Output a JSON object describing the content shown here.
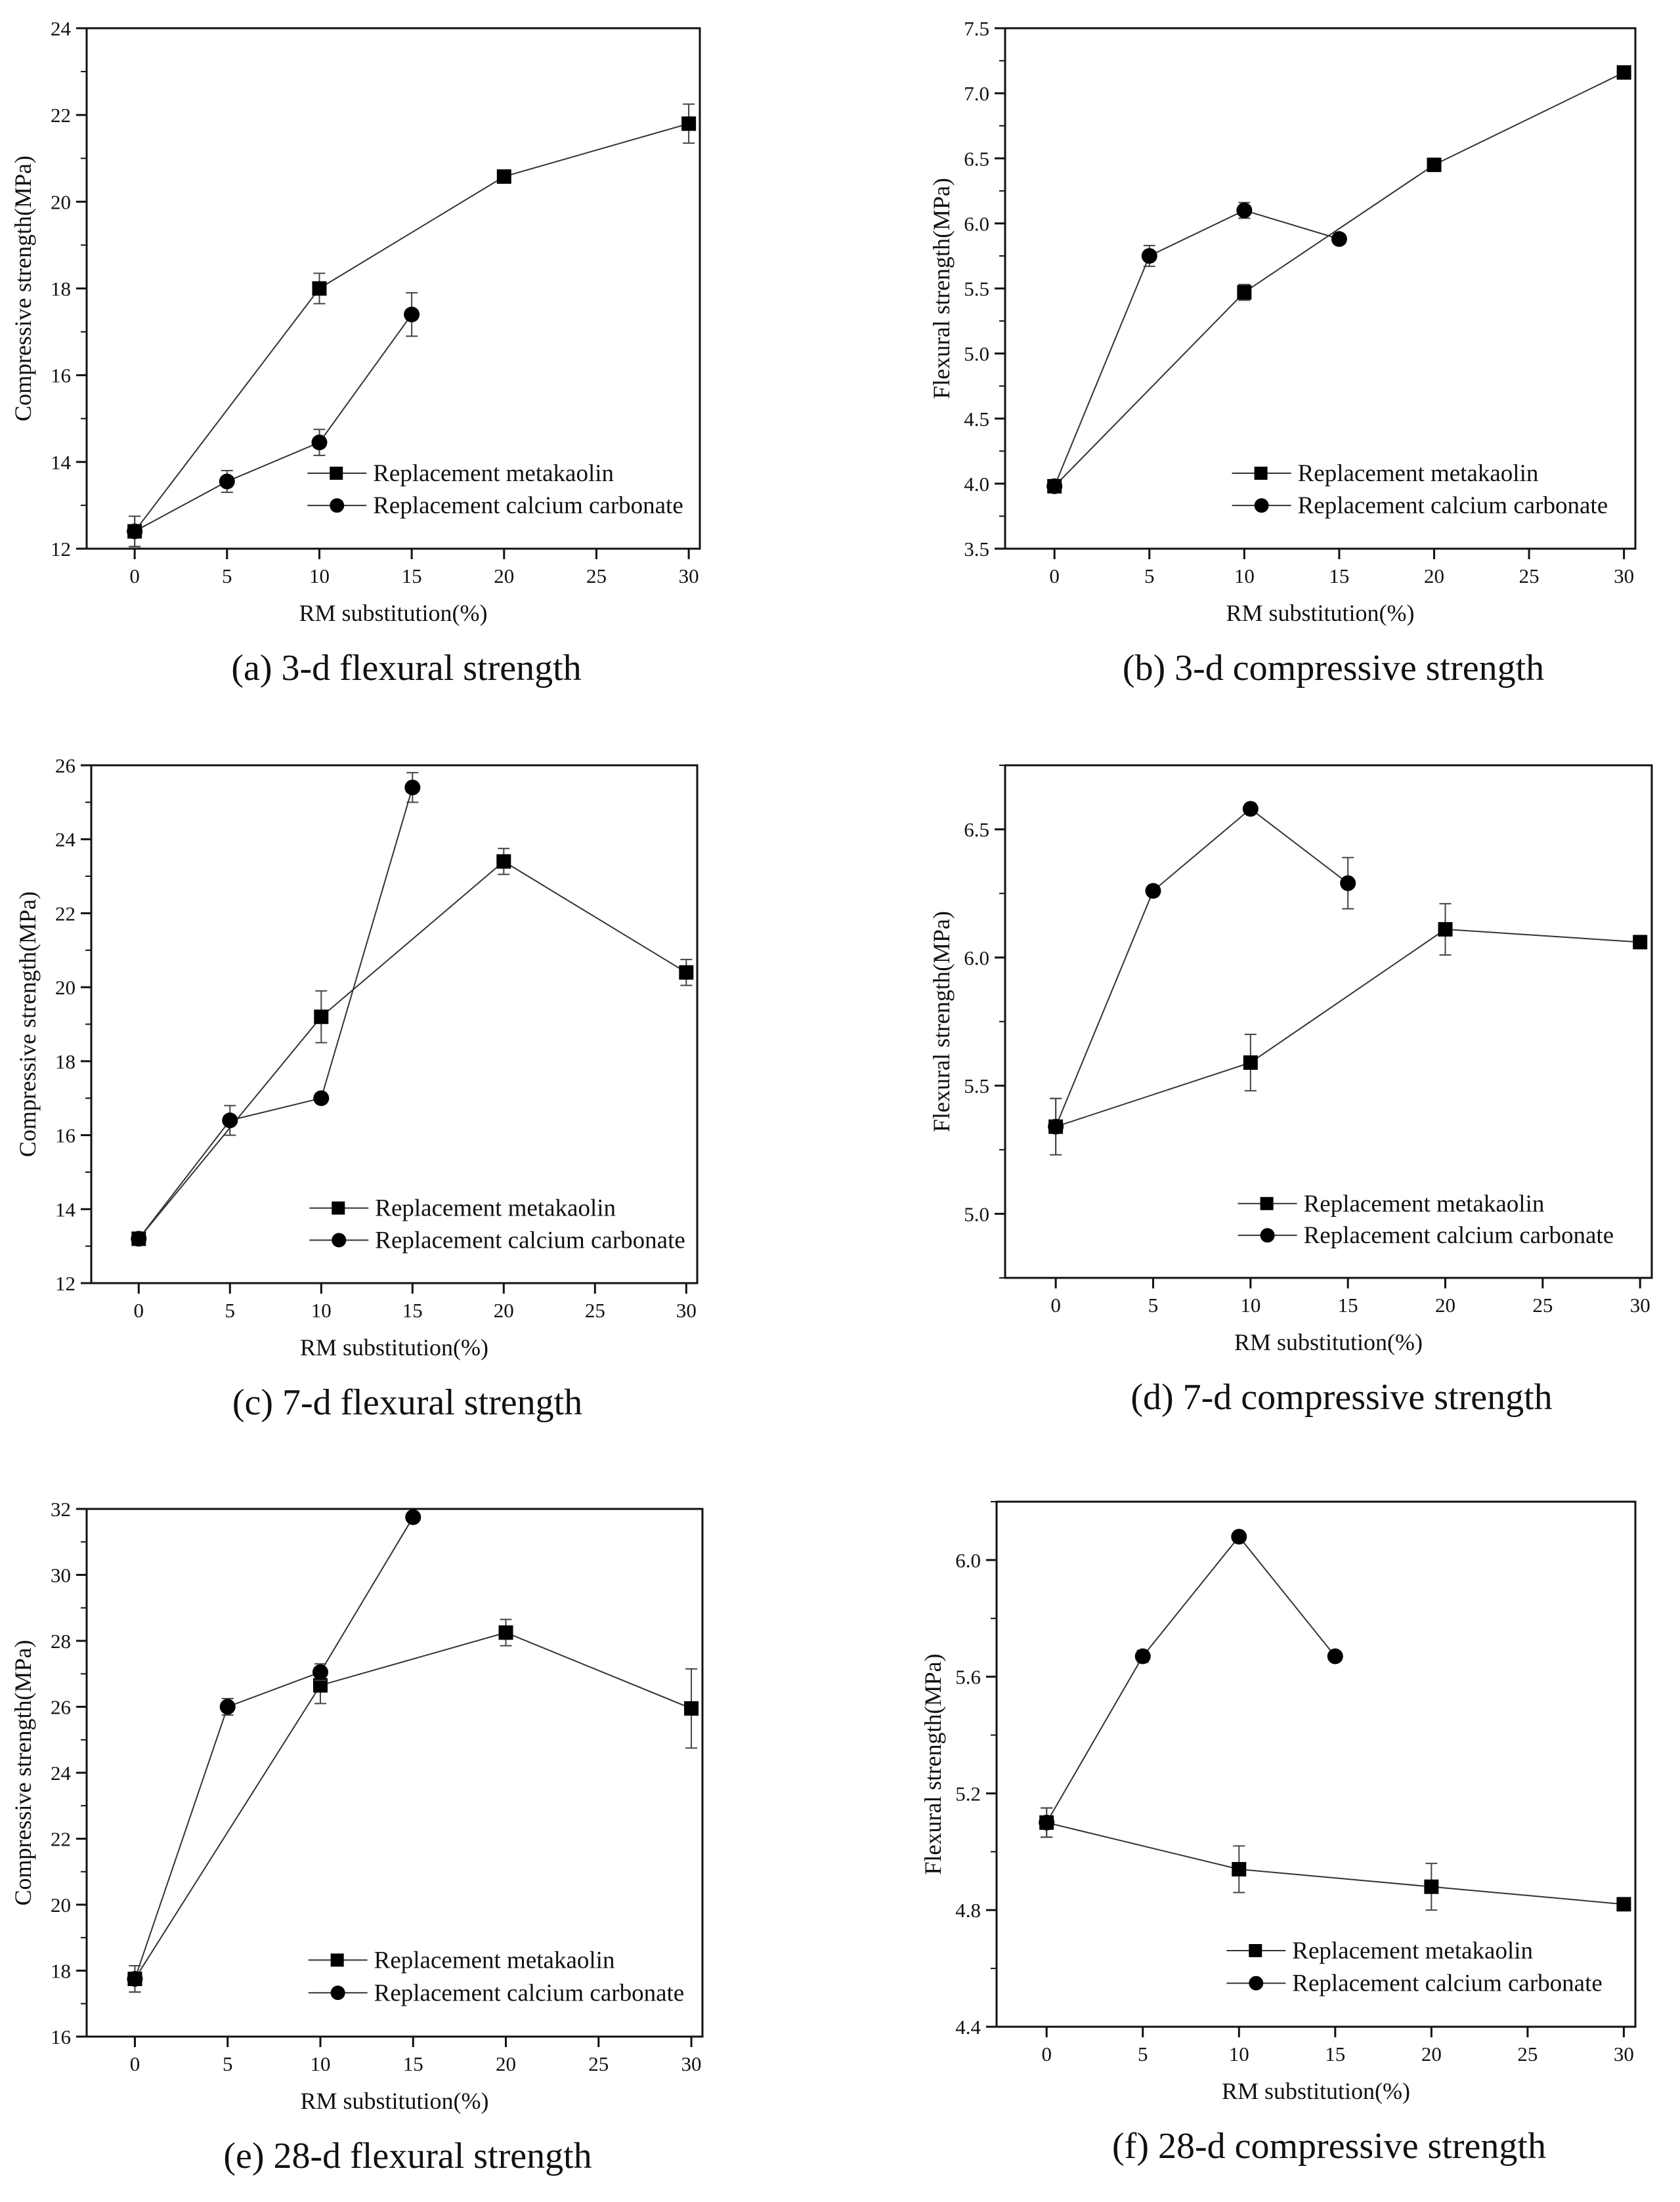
{
  "chart_data": [
    {
      "type": "line",
      "caption": "(a) 3-d flexural strength",
      "xlabel": "RM substitution(%)",
      "ylabel": "Compressive strength(MPa)",
      "xlim": [
        -2.6,
        30.6
      ],
      "ylim": [
        12,
        24
      ],
      "xticks": [
        0,
        5,
        10,
        15,
        20,
        25,
        30
      ],
      "yticks": [
        12,
        14,
        16,
        18,
        20,
        22,
        24
      ],
      "ytick_labels": [
        "12",
        "14",
        "16",
        "18",
        "20",
        "22",
        "24"
      ],
      "legend": "bottom-right",
      "series": [
        {
          "name": "Replacement metakaolin",
          "marker": "square",
          "x": [
            0,
            10,
            20,
            30
          ],
          "y": [
            12.4,
            18.0,
            20.58,
            21.8
          ],
          "error": [
            0.35,
            0.35,
            0.1,
            0.45
          ]
        },
        {
          "name": "Replacement calcium carbonate",
          "marker": "circle",
          "x": [
            0,
            5,
            10,
            15
          ],
          "y": [
            12.4,
            13.55,
            14.45,
            17.4
          ],
          "error": [
            0.35,
            0.25,
            0.3,
            0.5
          ]
        }
      ]
    },
    {
      "type": "line",
      "caption": "(b) 3-d compressive strength",
      "xlabel": "RM substitution(%)",
      "ylabel": "Flexural strength(MPa)",
      "xlim": [
        -2.6,
        30.6
      ],
      "ylim": [
        3.5,
        7.5
      ],
      "xticks": [
        0,
        5,
        10,
        15,
        20,
        25,
        30
      ],
      "yticks": [
        3.5,
        4.0,
        4.5,
        5.0,
        5.5,
        6.0,
        6.5,
        7.0,
        7.5
      ],
      "ytick_labels": [
        "3.5",
        "4.0",
        "4.5",
        "5.0",
        "5.5",
        "6.0",
        "6.5",
        "7.0",
        "7.5"
      ],
      "legend": "bottom-right",
      "series": [
        {
          "name": "Replacement metakaolin",
          "marker": "square",
          "x": [
            0,
            10,
            20,
            30
          ],
          "y": [
            3.98,
            5.47,
            6.45,
            7.16
          ],
          "error": [
            0.03,
            0.06,
            0.03,
            0.03
          ]
        },
        {
          "name": "Replacement calcium carbonate",
          "marker": "circle",
          "x": [
            0,
            5,
            10,
            15
          ],
          "y": [
            3.98,
            5.75,
            6.1,
            5.88
          ],
          "error": [
            0.03,
            0.08,
            0.06,
            0.02
          ]
        }
      ]
    },
    {
      "type": "line",
      "caption": "(c) 7-d flexural strength",
      "xlabel": "RM substitution(%)",
      "ylabel": "Compressive strength(MPa)",
      "xlim": [
        -2.6,
        30.6
      ],
      "ylim": [
        12,
        26
      ],
      "xticks": [
        0,
        5,
        10,
        15,
        20,
        25,
        30
      ],
      "yticks": [
        12,
        14,
        16,
        18,
        20,
        22,
        24,
        26
      ],
      "ytick_labels": [
        "12",
        "14",
        "16",
        "18",
        "20",
        "22",
        "24",
        "26"
      ],
      "legend": "bottom-right",
      "series": [
        {
          "name": "Replacement metakaolin",
          "marker": "square",
          "x": [
            0,
            10,
            20,
            30
          ],
          "y": [
            13.2,
            19.2,
            23.4,
            20.4
          ],
          "error": [
            0.1,
            0.7,
            0.35,
            0.35
          ]
        },
        {
          "name": "Replacement calcium carbonate",
          "marker": "circle",
          "x": [
            0,
            5,
            10,
            15
          ],
          "y": [
            13.2,
            16.4,
            17.0,
            25.4
          ],
          "error": [
            0.1,
            0.4,
            0.05,
            0.4
          ]
        }
      ]
    },
    {
      "type": "line",
      "caption": "(d) 7-d compressive strength",
      "xlabel": "RM substitution(%)",
      "ylabel": "Flexural strength(MPa)",
      "xlim": [
        -2.6,
        30.6
      ],
      "ylim": [
        4.75,
        6.75
      ],
      "xticks": [
        0,
        5,
        10,
        15,
        20,
        25,
        30
      ],
      "yticks": [
        5.0,
        5.5,
        6.0,
        6.5
      ],
      "ytick_labels": [
        "5.0",
        "5.5",
        "6.0",
        "6.5"
      ],
      "legend": "bottom-right",
      "series": [
        {
          "name": "Replacement metakaolin",
          "marker": "square",
          "x": [
            0,
            10,
            20,
            30
          ],
          "y": [
            5.34,
            5.59,
            6.11,
            6.06
          ],
          "error": [
            0.11,
            0.11,
            0.1,
            0.01
          ]
        },
        {
          "name": "Replacement calcium carbonate",
          "marker": "circle",
          "x": [
            0,
            5,
            10,
            15
          ],
          "y": [
            5.34,
            6.26,
            6.58,
            6.29
          ],
          "error": [
            0.11,
            0.01,
            0.01,
            0.1
          ]
        }
      ]
    },
    {
      "type": "line",
      "caption": "(e) 28-d flexural strength",
      "xlabel": "RM substitution(%)",
      "ylabel": "Compressive strength(MPa)",
      "xlim": [
        -2.6,
        30.6
      ],
      "ylim": [
        16,
        32
      ],
      "xticks": [
        0,
        5,
        10,
        15,
        20,
        25,
        30
      ],
      "yticks": [
        16,
        18,
        20,
        22,
        24,
        26,
        28,
        30,
        32
      ],
      "ytick_labels": [
        "16",
        "18",
        "20",
        "22",
        "24",
        "26",
        "28",
        "30",
        "32"
      ],
      "legend": "bottom-right",
      "series": [
        {
          "name": "Replacement metakaolin",
          "marker": "square",
          "x": [
            0,
            10,
            20,
            30
          ],
          "y": [
            17.75,
            26.65,
            28.25,
            25.95
          ],
          "error": [
            0.4,
            0.55,
            0.4,
            1.2
          ]
        },
        {
          "name": "Replacement calcium carbonate",
          "marker": "circle",
          "x": [
            0,
            5,
            10,
            15
          ],
          "y": [
            17.75,
            26.0,
            27.05,
            31.75
          ],
          "error": [
            0.4,
            0.25,
            0.25,
            0.1
          ]
        }
      ]
    },
    {
      "type": "line",
      "caption": "(f) 28-d compressive strength",
      "xlabel": "RM substitution(%)",
      "ylabel": "Flexural strength(MPa)",
      "xlim": [
        -2.6,
        30.6
      ],
      "ylim": [
        4.4,
        6.2
      ],
      "xticks": [
        0,
        5,
        10,
        15,
        20,
        25,
        30
      ],
      "yticks": [
        4.4,
        4.8,
        5.2,
        5.6,
        6.0
      ],
      "ytick_labels": [
        "4.4",
        "4.8",
        "5.2",
        "5.6",
        "6.0"
      ],
      "legend": "bottom-right",
      "series": [
        {
          "name": "Replacement metakaolin",
          "marker": "square",
          "x": [
            0,
            10,
            20,
            30
          ],
          "y": [
            5.1,
            4.94,
            4.88,
            4.82
          ],
          "error": [
            0.05,
            0.08,
            0.08,
            0.01
          ]
        },
        {
          "name": "Replacement calcium carbonate",
          "marker": "circle",
          "x": [
            0,
            5,
            10,
            15
          ],
          "y": [
            5.1,
            5.67,
            6.08,
            5.67
          ],
          "error": [
            0.05,
            0.02,
            0.01,
            0.01
          ]
        }
      ]
    }
  ]
}
